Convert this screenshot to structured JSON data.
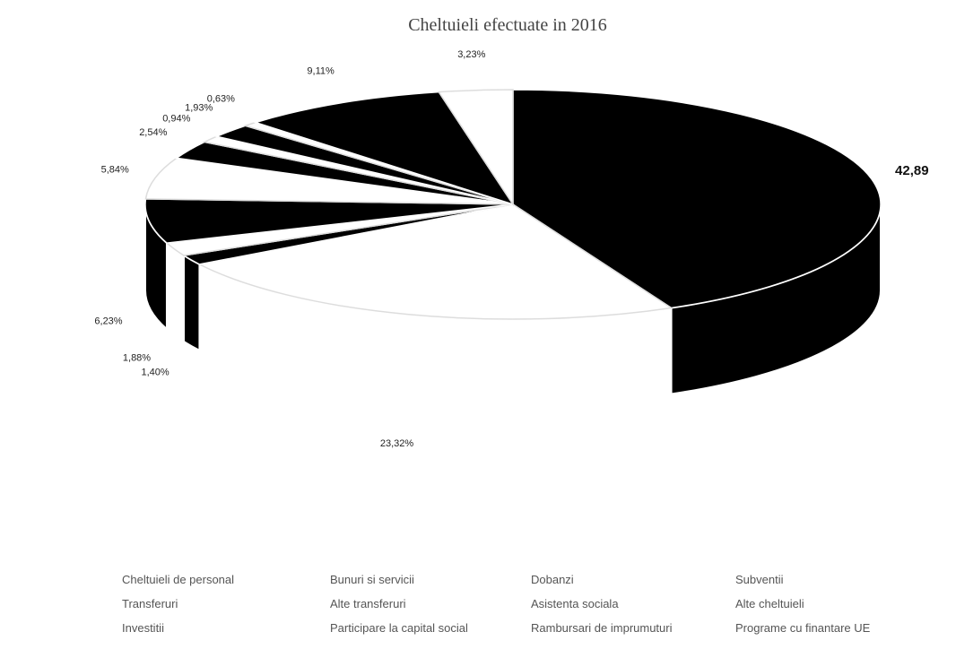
{
  "chart_data": {
    "type": "pie",
    "title": "Cheltuieli efectuate in 2016",
    "three_d": true,
    "colors": [
      "#000000",
      "#ffffff"
    ],
    "slices": [
      {
        "name": "Cheltuieli de personal",
        "value": 42.89,
        "label": "42,89"
      },
      {
        "name": "Bunuri si servicii",
        "value": 23.32,
        "label": "23,32%"
      },
      {
        "name": "Dobanzi",
        "value": 1.4,
        "label": "1,40%"
      },
      {
        "name": "Subventii",
        "value": 1.88,
        "label": "1,88%"
      },
      {
        "name": "Transferuri",
        "value": 6.23,
        "label": "6,23%"
      },
      {
        "name": "Alte transferuri",
        "value": 5.84,
        "label": "5,84%"
      },
      {
        "name": "Asistenta sociala",
        "value": 2.54,
        "label": "2,54%"
      },
      {
        "name": "Alte cheltuieli",
        "value": 0.94,
        "label": "0,94%"
      },
      {
        "name": "Investitii",
        "value": 1.93,
        "label": "1,93%"
      },
      {
        "name": "Participare la capital social",
        "value": 0.63,
        "label": "0,63%"
      },
      {
        "name": "Rambursari de imprumuturi",
        "value": 9.11,
        "label": "9,11%"
      },
      {
        "name": "Programe cu finantare UE",
        "value": 3.23,
        "label": "3,23%"
      }
    ],
    "legend_position": "bottom"
  }
}
